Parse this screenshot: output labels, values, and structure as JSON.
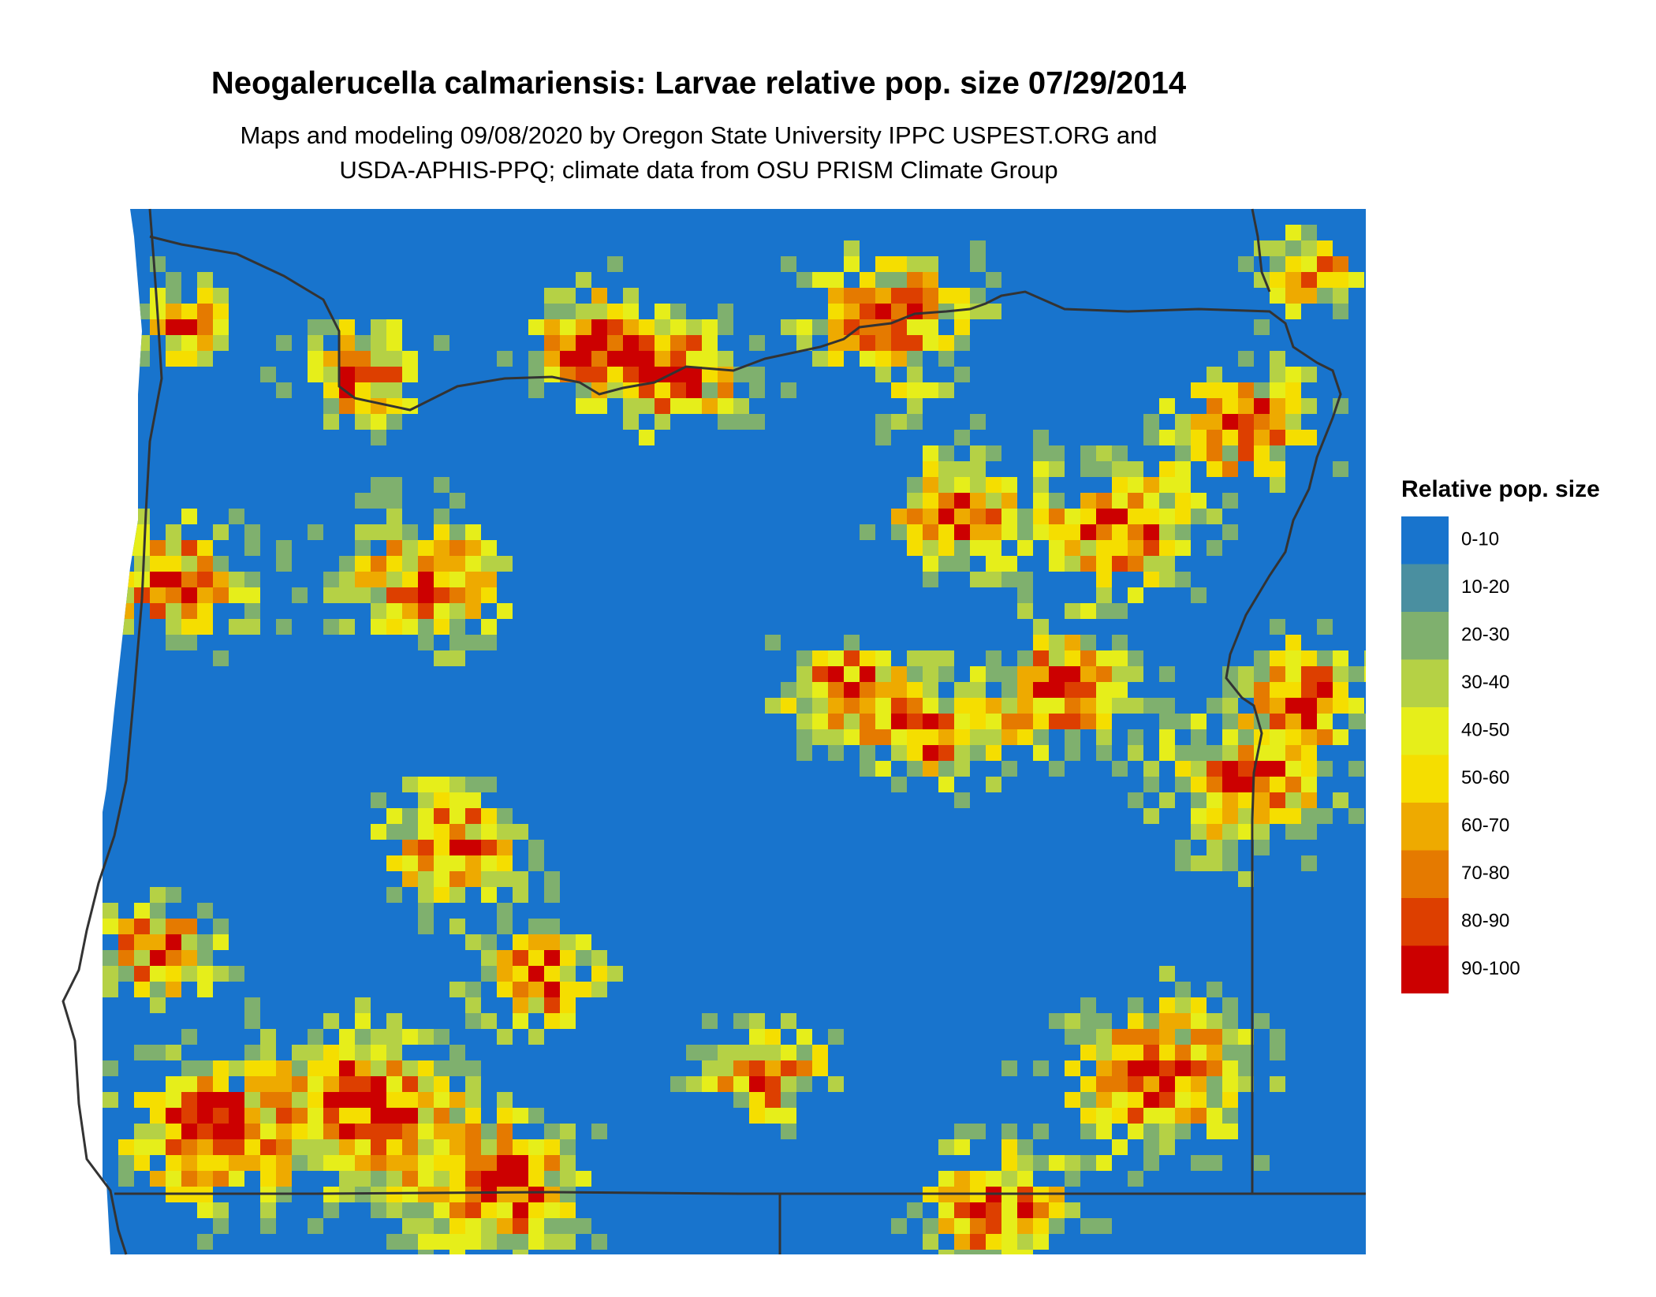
{
  "title": "Neogalerucella calmariensis: Larvae relative pop. size 07/29/2014",
  "subtitle": [
    "Maps and modeling 09/08/2020 by Oregon State University IPPC USPEST.ORG and",
    "USDA-APHIS-PPQ; climate data from OSU PRISM Climate Group"
  ],
  "legend": {
    "title": "Relative pop. size",
    "items": [
      {
        "label": "0-10",
        "color": "#1874cd"
      },
      {
        "label": "10-20",
        "color": "#4a8fa0"
      },
      {
        "label": "20-30",
        "color": "#7fb06e"
      },
      {
        "label": "30-40",
        "color": "#b5d145"
      },
      {
        "label": "40-50",
        "color": "#e6ee1a"
      },
      {
        "label": "50-60",
        "color": "#f5de00"
      },
      {
        "label": "60-70",
        "color": "#eeaa00"
      },
      {
        "label": "70-80",
        "color": "#e57a00"
      },
      {
        "label": "80-90",
        "color": "#dd3f00"
      },
      {
        "label": "90-100",
        "color": "#cc0000"
      }
    ]
  }
}
